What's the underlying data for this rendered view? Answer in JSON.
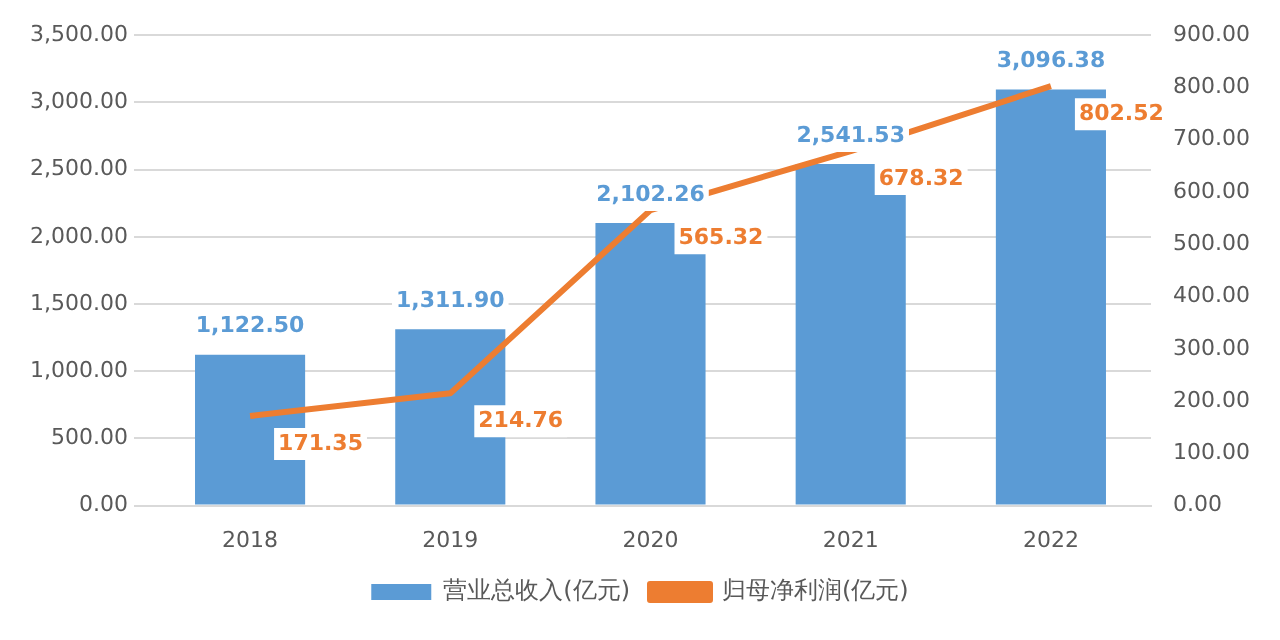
{
  "chart_data": {
    "type": "bar",
    "categories": [
      "2018",
      "2019",
      "2020",
      "2021",
      "2022"
    ],
    "series": [
      {
        "name": "营业总收入(亿元)",
        "color": "#5b9bd5",
        "values": [
          1122.5,
          1311.9,
          2102.26,
          2541.53,
          3096.38
        ],
        "value_labels": [
          "1,122.50",
          "1,311.90",
          "2,102.26",
          "2,541.53",
          "3,096.38"
        ]
      },
      {
        "name": "归母净利润(亿元)",
        "type": "line",
        "axis": "y2",
        "color": "#ed7d31",
        "values": [
          171.35,
          214.76,
          565.32,
          678.32,
          802.52
        ],
        "value_labels": [
          "171.35",
          "214.76",
          "565.32",
          "678.32",
          "802.52"
        ]
      }
    ],
    "ylim": [
      0,
      3500
    ],
    "yticks": [
      {
        "value": 0,
        "label": "0.00"
      },
      {
        "value": 500,
        "label": "500.00"
      },
      {
        "value": 1000,
        "label": "1,000.00"
      },
      {
        "value": 1500,
        "label": "1,500.00"
      },
      {
        "value": 2000,
        "label": "2,000.00"
      },
      {
        "value": 2500,
        "label": "2,500.00"
      },
      {
        "value": 3000,
        "label": "3,000.00"
      },
      {
        "value": 3500,
        "label": "3,500.00"
      }
    ],
    "y2lim": [
      0,
      900
    ],
    "y2ticks": [
      {
        "value": 0,
        "label": "0.00"
      },
      {
        "value": 100,
        "label": "100.00"
      },
      {
        "value": 200,
        "label": "200.00"
      },
      {
        "value": 300,
        "label": "300.00"
      },
      {
        "value": 400,
        "label": "400.00"
      },
      {
        "value": 500,
        "label": "500.00"
      },
      {
        "value": 600,
        "label": "600.00"
      },
      {
        "value": 700,
        "label": "700.00"
      },
      {
        "value": 800,
        "label": "800.00"
      },
      {
        "value": 900,
        "label": "900.00"
      }
    ],
    "grid": "y",
    "legend": "bottom",
    "marker": "none",
    "line_style": "solid"
  }
}
